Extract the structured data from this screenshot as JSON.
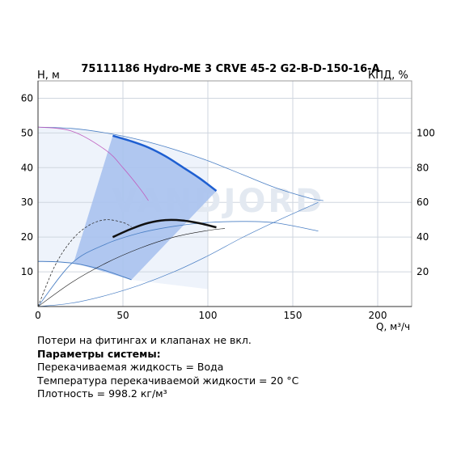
{
  "chart_data": {
    "type": "line",
    "title": "75111186 Hydro-ME 3 CRVE 45-2 G2-B-D-150-16-A",
    "ylabel_left": "H, м",
    "ylabel_right": "КПД, %",
    "xlabel": "Q, м³/ч",
    "watermark": "VANDJORD",
    "xlim": [
      0,
      220
    ],
    "ylim_left": [
      0,
      65
    ],
    "ylim_right": [
      0,
      130
    ],
    "x_ticks": [
      0,
      50,
      100,
      150,
      200
    ],
    "y_ticks_left": [
      10,
      20,
      30,
      40,
      50,
      60
    ],
    "y_ticks_right": [
      20,
      40,
      60,
      80,
      100
    ],
    "grid": true,
    "series": [
      {
        "role": "head-max-operating",
        "axis": "left",
        "color": "#1e5fd1",
        "x": [
          44,
          55,
          65,
          75,
          85,
          95,
          105
        ],
        "y": [
          49.2,
          47.6,
          45.8,
          43.3,
          40.2,
          37.0,
          33.3
        ]
      },
      {
        "role": "head-max-full",
        "axis": "left",
        "color": "#4a7fc4",
        "x": [
          0,
          20,
          40,
          60,
          80,
          100,
          120,
          140,
          160,
          168
        ],
        "y": [
          51.7,
          51.3,
          50.0,
          48.0,
          45.3,
          42.0,
          38.1,
          34.2,
          31.2,
          30.5
        ]
      },
      {
        "role": "head-min-speed",
        "axis": "left",
        "color": "#4a7fc4",
        "x": [
          0,
          10,
          20,
          30,
          40,
          50,
          55
        ],
        "y": [
          13.0,
          12.9,
          12.5,
          11.6,
          10.3,
          8.6,
          7.7
        ]
      },
      {
        "role": "head-mid-curve",
        "axis": "left",
        "color": "#c060c0",
        "x": [
          0,
          20,
          40,
          50,
          60,
          65
        ],
        "y": [
          51.7,
          50.5,
          45.0,
          40.0,
          34.0,
          30.5
        ]
      },
      {
        "role": "efficiency-operating",
        "axis": "right",
        "color": "#111111",
        "x": [
          44,
          55,
          65,
          75,
          85,
          95,
          105
        ],
        "y": [
          40.0,
          44.8,
          48.2,
          49.8,
          49.6,
          48.0,
          45.6
        ]
      },
      {
        "role": "efficiency-full",
        "axis": "right",
        "color": "#4a7fc4",
        "x": [
          0,
          20,
          40,
          60,
          80,
          100,
          120,
          140,
          165
        ],
        "y": [
          0,
          25,
          36,
          42.4,
          46.2,
          48.4,
          49.0,
          48.2,
          43.5
        ]
      },
      {
        "role": "efficiency-low",
        "axis": "right",
        "color": "#333333",
        "x": [
          0,
          10,
          20,
          30,
          40,
          50,
          55
        ],
        "y": [
          0,
          23.6,
          38.4,
          46.8,
          50.0,
          48.4,
          46.0
        ]
      },
      {
        "role": "efficiency-thin",
        "axis": "right",
        "color": "#111111",
        "x": [
          0,
          20,
          40,
          60,
          80,
          100,
          110
        ],
        "y": [
          0,
          14,
          25,
          33.6,
          40.0,
          43.8,
          45.0
        ]
      },
      {
        "role": "system-curve",
        "axis": "left",
        "color": "#4a7fc4",
        "x": [
          0,
          20,
          40,
          60,
          80,
          100,
          120,
          140,
          165
        ],
        "y": [
          0,
          1.0,
          3.2,
          6.2,
          10.0,
          14.6,
          19.8,
          24.5,
          30.0
        ]
      }
    ]
  },
  "notes": {
    "line1": "Потери на фитингах и клапанах не вкл.",
    "header": "Параметры системы:",
    "line2": "Перекачиваемая жидкость = Вода",
    "line3": "Температура перекачиваемой жидкости = 20 °С",
    "line4": "Плотность = 998.2 кг/м³"
  }
}
